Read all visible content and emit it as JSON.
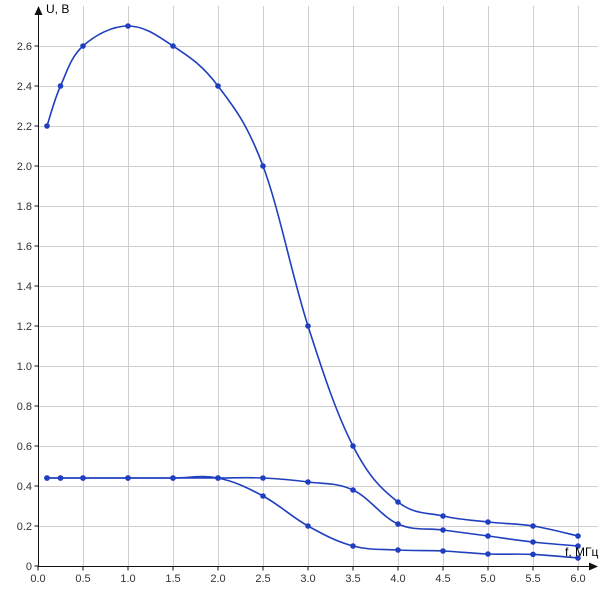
{
  "colors": {
    "series": "#1f3fbf",
    "grid": "#cfcfcf",
    "axis": "#111111",
    "background": "#ffffff"
  },
  "chart_data": {
    "type": "line",
    "title": "",
    "xlabel": "f, МГц",
    "ylabel": "U, В",
    "xlim": [
      0,
      6
    ],
    "ylim": [
      0,
      2.7
    ],
    "grid": true,
    "legend": "none",
    "x_ticks": [
      0,
      0.5,
      1.0,
      1.5,
      2.0,
      2.5,
      3.0,
      3.5,
      4.0,
      4.5,
      5.0,
      5.5,
      6.0
    ],
    "x_tick_labels": [
      "0.0",
      "0.5",
      "1.0",
      "1.5",
      "2.0",
      "2.5",
      "3.0",
      "3.5",
      "4.0",
      "4.5",
      "5.0",
      "5.5",
      "6.0"
    ],
    "y_ticks": [
      0,
      0.2,
      0.4,
      0.6,
      0.8,
      1.0,
      1.2,
      1.4,
      1.6,
      1.8,
      2.0,
      2.2,
      2.4,
      2.6
    ],
    "y_tick_labels": [
      "0",
      "0.2",
      "0.4",
      "0.6",
      "0.8",
      "1.0",
      "1.2",
      "1.4",
      "1.6",
      "1.8",
      "2.0",
      "2.2",
      "2.4",
      "2.6"
    ],
    "series": [
      {
        "x": [
          0.1,
          0.25,
          0.5,
          1.0,
          1.5,
          2.0,
          2.5,
          3.0,
          3.5,
          4.0,
          4.5,
          5.0,
          5.5,
          6.0
        ],
        "y": [
          2.2,
          2.4,
          2.6,
          2.7,
          2.6,
          2.4,
          2.0,
          1.2,
          0.6,
          0.32,
          0.25,
          0.22,
          0.2,
          0.15
        ]
      },
      {
        "x": [
          0.1,
          0.25,
          0.5,
          1.0,
          1.5,
          2.0,
          2.5,
          3.0,
          3.5,
          4.0,
          4.5,
          5.0,
          5.5,
          6.0
        ],
        "y": [
          0.44,
          0.44,
          0.44,
          0.44,
          0.44,
          0.44,
          0.44,
          0.42,
          0.38,
          0.21,
          0.18,
          0.15,
          0.12,
          0.1
        ]
      },
      {
        "x": [
          0.1,
          0.25,
          0.5,
          1.0,
          1.5,
          2.0,
          2.5,
          3.0,
          3.5,
          4.0,
          4.5,
          5.0,
          5.5,
          6.0
        ],
        "y": [
          0.44,
          0.44,
          0.44,
          0.44,
          0.44,
          0.44,
          0.35,
          0.2,
          0.1,
          0.08,
          0.075,
          0.06,
          0.058,
          0.04
        ]
      }
    ]
  }
}
